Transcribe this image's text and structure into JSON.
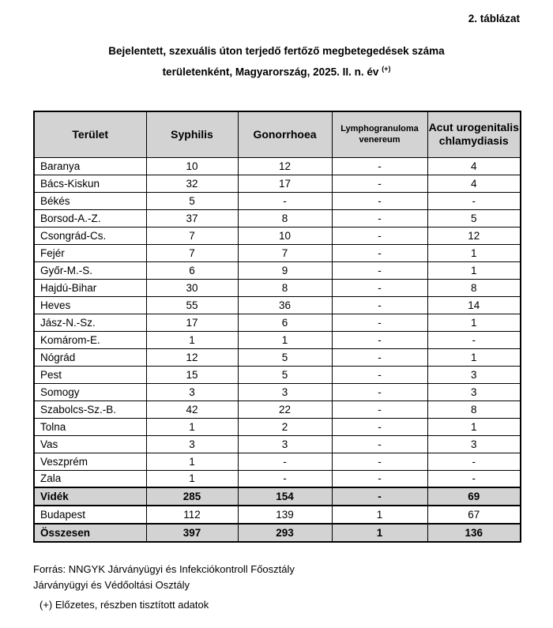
{
  "page": {
    "corner_label": "2. táblázat",
    "title_line1": "Bejelentett, szexuális úton terjedő fertőző megbetegedések száma",
    "title_line2": "területenként, Magyarország, 2025. II. n. év",
    "title_superscript": "(+)"
  },
  "table": {
    "headers": [
      "Terület",
      "Syphilis",
      "Gonorrhoea",
      "Lymphogranuloma venereum",
      "Acut urogenitalis chlamydiasis"
    ],
    "rows": [
      {
        "label": "Baranya",
        "type": "region",
        "values": [
          "10",
          "12",
          "-",
          "4"
        ]
      },
      {
        "label": "Bács-Kiskun",
        "type": "region",
        "values": [
          "32",
          "17",
          "-",
          "4"
        ]
      },
      {
        "label": "Békés",
        "type": "region",
        "values": [
          "5",
          "-",
          "-",
          "-"
        ]
      },
      {
        "label": "Borsod-A.-Z.",
        "type": "region",
        "values": [
          "37",
          "8",
          "-",
          "5"
        ]
      },
      {
        "label": "Csongrád-Cs.",
        "type": "region",
        "values": [
          "7",
          "10",
          "-",
          "12"
        ]
      },
      {
        "label": "Fejér",
        "type": "region",
        "values": [
          "7",
          "7",
          "-",
          "1"
        ]
      },
      {
        "label": "Győr-M.-S.",
        "type": "region",
        "values": [
          "6",
          "9",
          "-",
          "1"
        ]
      },
      {
        "label": "Hajdú-Bihar",
        "type": "region",
        "values": [
          "30",
          "8",
          "-",
          "8"
        ]
      },
      {
        "label": "Heves",
        "type": "region",
        "values": [
          "55",
          "36",
          "-",
          "14"
        ]
      },
      {
        "label": "Jász-N.-Sz.",
        "type": "region",
        "values": [
          "17",
          "6",
          "-",
          "1"
        ]
      },
      {
        "label": "Komárom-E.",
        "type": "region",
        "values": [
          "1",
          "1",
          "-",
          "-"
        ]
      },
      {
        "label": "Nógrád",
        "type": "region",
        "values": [
          "12",
          "5",
          "-",
          "1"
        ]
      },
      {
        "label": "Pest",
        "type": "region",
        "values": [
          "15",
          "5",
          "-",
          "3"
        ]
      },
      {
        "label": "Somogy",
        "type": "region",
        "values": [
          "3",
          "3",
          "-",
          "3"
        ]
      },
      {
        "label": "Szabolcs-Sz.-B.",
        "type": "region",
        "values": [
          "42",
          "22",
          "-",
          "8"
        ]
      },
      {
        "label": "Tolna",
        "type": "region",
        "values": [
          "1",
          "2",
          "-",
          "1"
        ]
      },
      {
        "label": "Vas",
        "type": "region",
        "values": [
          "3",
          "3",
          "-",
          "3"
        ]
      },
      {
        "label": "Veszprém",
        "type": "region",
        "values": [
          "1",
          "-",
          "-",
          "-"
        ]
      },
      {
        "label": "Zala",
        "type": "region",
        "values": [
          "1",
          "-",
          "-",
          "-"
        ]
      },
      {
        "label": "Vidék",
        "type": "subtotal",
        "values": [
          "285",
          "154",
          "-",
          "69"
        ]
      },
      {
        "label": "Budapest",
        "type": "capital",
        "values": [
          "112",
          "139",
          "1",
          "67"
        ]
      },
      {
        "label": "Összesen",
        "type": "grandtotal",
        "values": [
          "397",
          "293",
          "1",
          "136"
        ]
      }
    ]
  },
  "footer": {
    "source_line1": "Forrás: NNGYK Járványügyi és Infekciókontroll Főosztály",
    "source_line2": "Járványügyi és Védőoltási Osztály",
    "note": "(+) Előzetes, részben tisztított adatok"
  },
  "colors": {
    "header_bg": "#d3d3d3",
    "border": "#000000",
    "text": "#000000"
  }
}
